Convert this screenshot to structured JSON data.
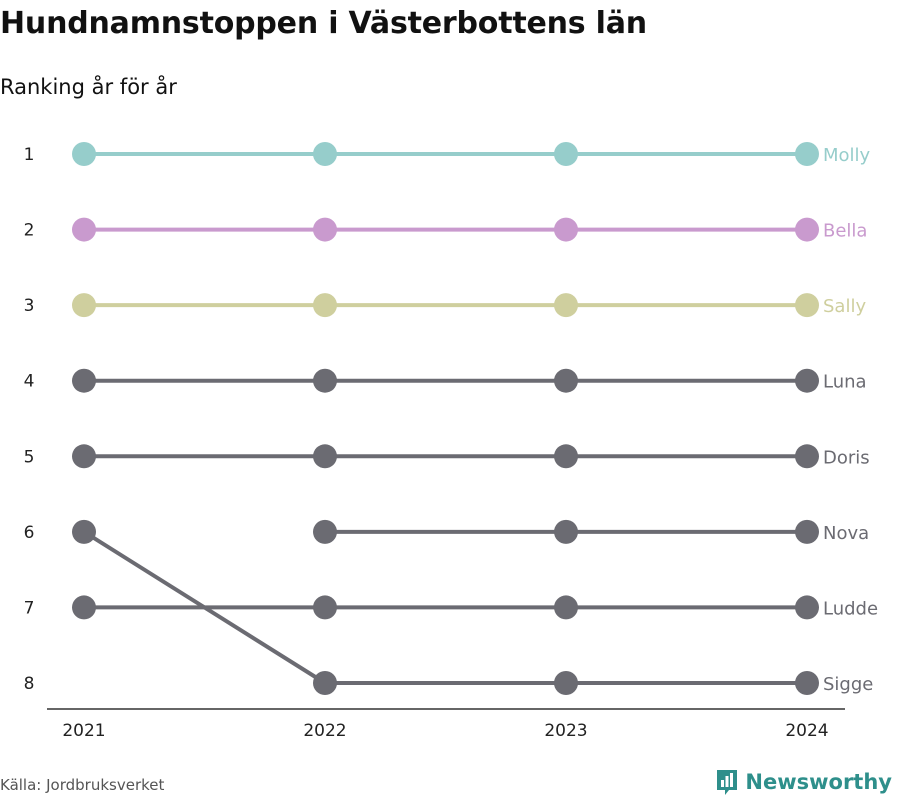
{
  "header": {
    "title": "Hundnamnstoppen i Västerbottens län",
    "subtitle": "Ranking år för år"
  },
  "footer": {
    "source": "Källa: Jordbruksverket",
    "brand": "Newsworthy",
    "brand_icon": "bar-chart-logo-icon",
    "brand_color": "#2e8f8b"
  },
  "chart_data": {
    "type": "line",
    "x": [
      "2021",
      "2022",
      "2023",
      "2024"
    ],
    "y_ticks": [
      1,
      2,
      3,
      4,
      5,
      6,
      7,
      8
    ],
    "y_reversed": true,
    "ylim": [
      1,
      8
    ],
    "grid": false,
    "legend": "end-labels-right",
    "series": [
      {
        "name": "Molly",
        "color": "#96cdcb",
        "values": [
          1,
          1,
          1,
          1
        ]
      },
      {
        "name": "Bella",
        "color": "#c99ace",
        "values": [
          2,
          2,
          2,
          2
        ]
      },
      {
        "name": "Sally",
        "color": "#cfcf9e",
        "values": [
          3,
          3,
          3,
          3
        ]
      },
      {
        "name": "Luna",
        "color": "#6b6b72",
        "values": [
          4,
          4,
          4,
          4
        ]
      },
      {
        "name": "Doris",
        "color": "#6b6b72",
        "values": [
          5,
          5,
          5,
          5
        ]
      },
      {
        "name": "Nova",
        "color": "#6b6b72",
        "values": [
          null,
          6,
          6,
          6
        ]
      },
      {
        "name": "Ludde",
        "color": "#6b6b72",
        "values": [
          7,
          7,
          7,
          7
        ]
      },
      {
        "name": "Sigge",
        "color": "#6b6b72",
        "values": [
          6,
          8,
          8,
          8
        ]
      }
    ]
  }
}
